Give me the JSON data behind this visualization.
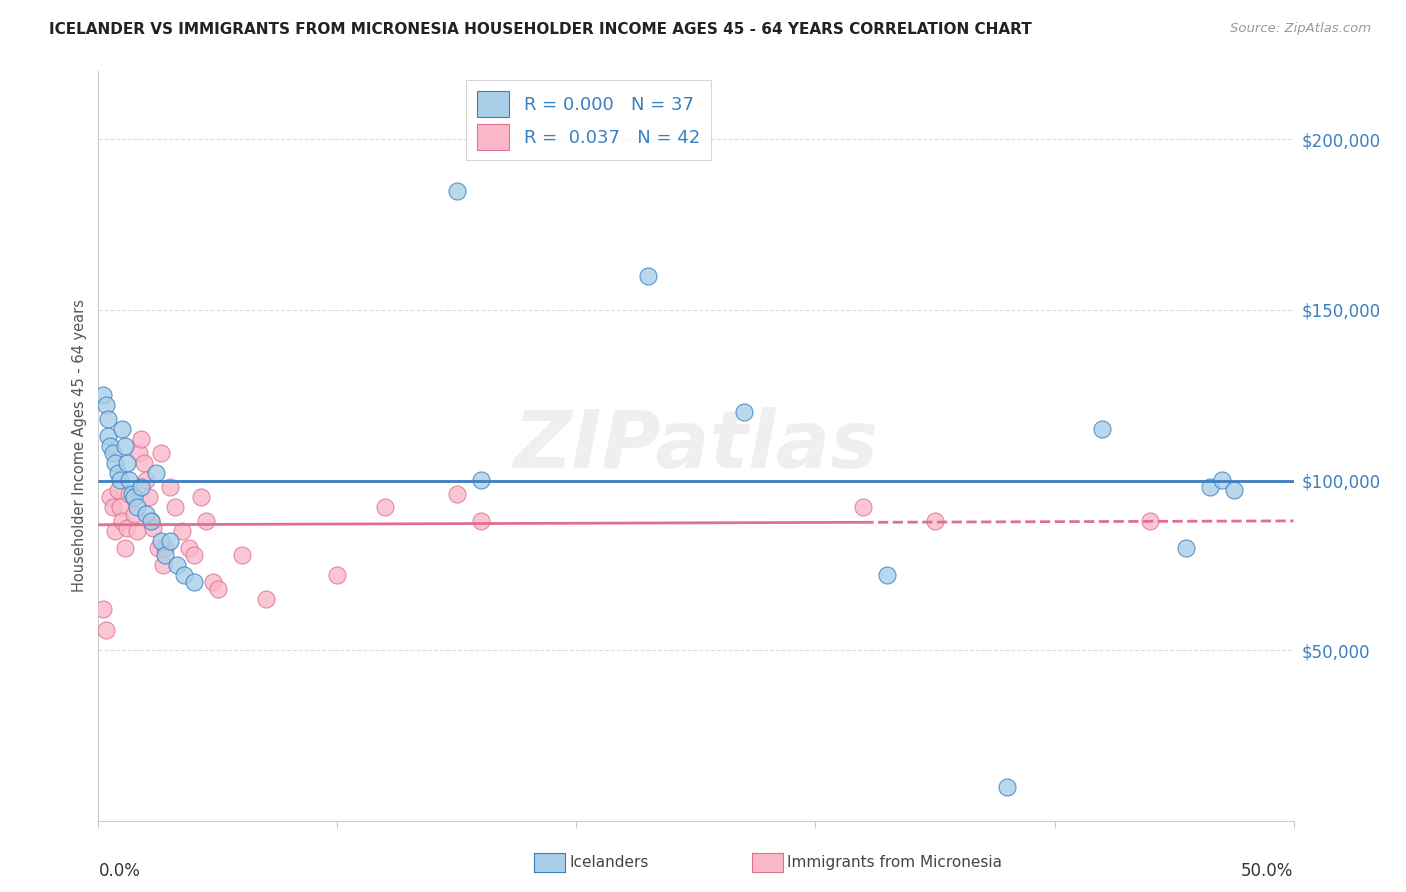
{
  "title": "ICELANDER VS IMMIGRANTS FROM MICRONESIA HOUSEHOLDER INCOME AGES 45 - 64 YEARS CORRELATION CHART",
  "source": "Source: ZipAtlas.com",
  "ylabel": "Householder Income Ages 45 - 64 years",
  "ytick_labels": [
    "$50,000",
    "$100,000",
    "$150,000",
    "$200,000"
  ],
  "ytick_values": [
    50000,
    100000,
    150000,
    200000
  ],
  "ylim": [
    0,
    220000
  ],
  "xlim": [
    0.0,
    0.5
  ],
  "legend_r1": "R = 0.000",
  "legend_n1": "N = 37",
  "legend_r2": "R = 0.037",
  "legend_n2": "N = 42",
  "legend_label1": "Icelanders",
  "legend_label2": "Immigrants from Micronesia",
  "blue_color": "#a8cfe8",
  "pink_color": "#f9b8ca",
  "line_blue": "#3a7fc1",
  "line_pink": "#e07090",
  "watermark": "ZIPatlas",
  "blue_scatter_x": [
    0.002,
    0.003,
    0.004,
    0.004,
    0.005,
    0.006,
    0.007,
    0.008,
    0.009,
    0.01,
    0.011,
    0.012,
    0.013,
    0.014,
    0.015,
    0.016,
    0.018,
    0.02,
    0.022,
    0.024,
    0.026,
    0.028,
    0.03,
    0.033,
    0.036,
    0.04,
    0.15,
    0.16,
    0.23,
    0.27,
    0.33,
    0.38,
    0.42,
    0.455,
    0.465,
    0.47,
    0.475
  ],
  "blue_scatter_y": [
    125000,
    122000,
    118000,
    113000,
    110000,
    108000,
    105000,
    102000,
    100000,
    115000,
    110000,
    105000,
    100000,
    96000,
    95000,
    92000,
    98000,
    90000,
    88000,
    102000,
    82000,
    78000,
    82000,
    75000,
    72000,
    70000,
    185000,
    100000,
    160000,
    120000,
    72000,
    10000,
    115000,
    80000,
    98000,
    100000,
    97000
  ],
  "pink_scatter_x": [
    0.002,
    0.003,
    0.005,
    0.006,
    0.007,
    0.008,
    0.009,
    0.01,
    0.011,
    0.012,
    0.013,
    0.015,
    0.016,
    0.017,
    0.018,
    0.019,
    0.02,
    0.021,
    0.022,
    0.023,
    0.025,
    0.026,
    0.027,
    0.028,
    0.03,
    0.032,
    0.035,
    0.038,
    0.04,
    0.043,
    0.045,
    0.048,
    0.05,
    0.06,
    0.07,
    0.1,
    0.12,
    0.15,
    0.16,
    0.32,
    0.35,
    0.44
  ],
  "pink_scatter_y": [
    62000,
    56000,
    95000,
    92000,
    85000,
    97000,
    92000,
    88000,
    80000,
    86000,
    96000,
    90000,
    85000,
    108000,
    112000,
    105000,
    100000,
    95000,
    88000,
    86000,
    80000,
    108000,
    75000,
    80000,
    98000,
    92000,
    85000,
    80000,
    78000,
    95000,
    88000,
    70000,
    68000,
    78000,
    65000,
    72000,
    92000,
    96000,
    88000,
    92000,
    88000,
    88000
  ]
}
